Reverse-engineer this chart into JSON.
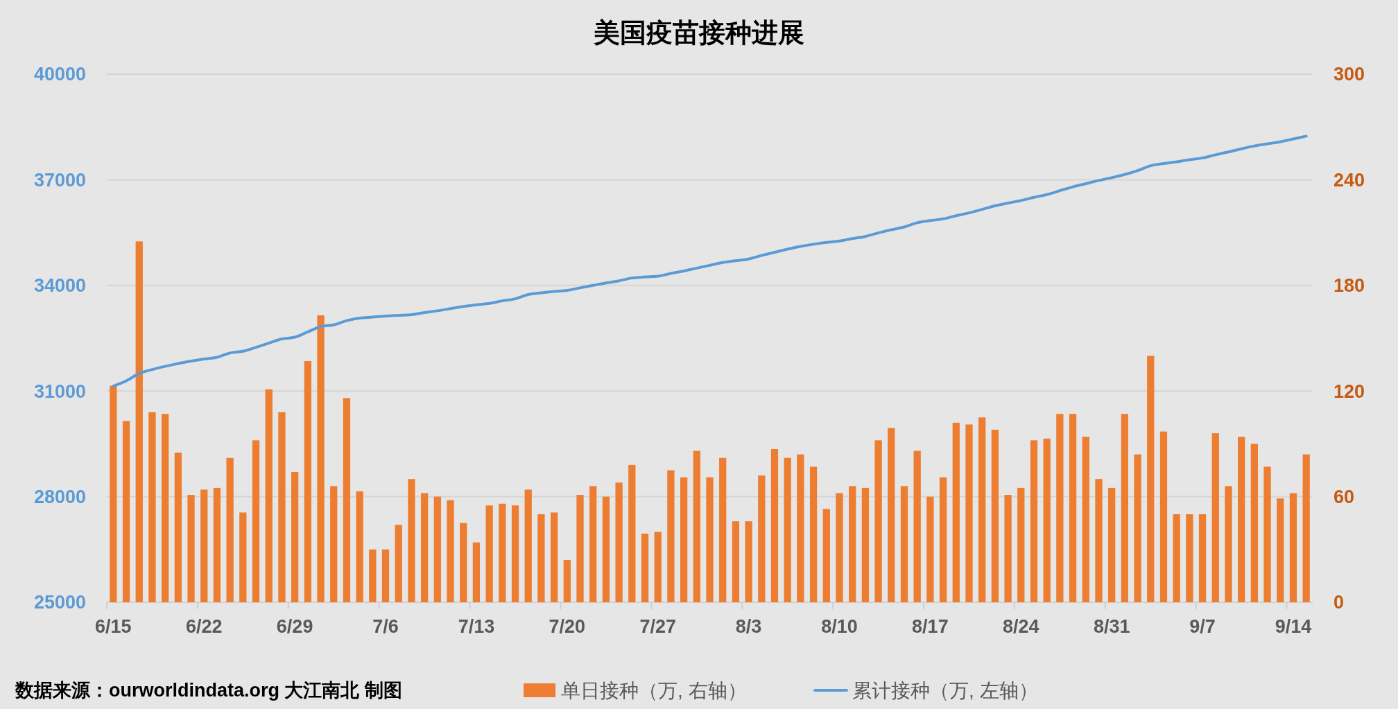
{
  "chart_data": {
    "type": "bar",
    "title": "美国疫苗接种进展",
    "categories": [
      "6/15",
      null,
      null,
      null,
      null,
      null,
      null,
      "6/22",
      null,
      null,
      null,
      null,
      null,
      null,
      "6/29",
      null,
      null,
      null,
      null,
      null,
      null,
      "7/6",
      null,
      null,
      null,
      null,
      null,
      null,
      "7/13",
      null,
      null,
      null,
      null,
      null,
      null,
      "7/20",
      null,
      null,
      null,
      null,
      null,
      null,
      "7/27",
      null,
      null,
      null,
      null,
      null,
      null,
      "8/3",
      null,
      null,
      null,
      null,
      null,
      null,
      "8/10",
      null,
      null,
      null,
      null,
      null,
      null,
      "8/17",
      null,
      null,
      null,
      null,
      null,
      null,
      "8/24",
      null,
      null,
      null,
      null,
      null,
      null,
      "8/31",
      null,
      null,
      null,
      null,
      null,
      null,
      "9/7",
      null,
      null,
      null,
      null,
      null,
      null,
      "9/14",
      null
    ],
    "series": [
      {
        "name": "单日接种（万, 右轴）",
        "axis": "y2",
        "color": "#ed7d31",
        "values": [
          123,
          103,
          205,
          108,
          107,
          85,
          61,
          64,
          65,
          82,
          51,
          92,
          121,
          108,
          74,
          137,
          163,
          66,
          116,
          63,
          30,
          30,
          44,
          70,
          62,
          60,
          58,
          45,
          34,
          55,
          56,
          55,
          64,
          50,
          51,
          24,
          61,
          66,
          60,
          68,
          78,
          39,
          40,
          75,
          71,
          86,
          71,
          82,
          46,
          46,
          72,
          87,
          82,
          84,
          77,
          53,
          62,
          66,
          65,
          92,
          99,
          66,
          86,
          60,
          71,
          102,
          101,
          105,
          98,
          61,
          65,
          92,
          93,
          107,
          107,
          94,
          70,
          65,
          107,
          84,
          140,
          97,
          50,
          50,
          50,
          96,
          66,
          94,
          90,
          77,
          59,
          62,
          84
        ]
      },
      {
        "name": "累计接种（万, 左轴）",
        "type": "line",
        "axis": "y",
        "color": "#5b9bd5",
        "values": [
          31140,
          31290,
          31500,
          31610,
          31700,
          31780,
          31850,
          31910,
          31960,
          32080,
          32130,
          32240,
          32360,
          32480,
          32530,
          32680,
          32830,
          32880,
          33000,
          33070,
          33100,
          33130,
          33150,
          33170,
          33230,
          33280,
          33340,
          33400,
          33450,
          33490,
          33560,
          33620,
          33740,
          33790,
          33830,
          33860,
          33930,
          34000,
          34070,
          34130,
          34210,
          34240,
          34260,
          34340,
          34410,
          34490,
          34570,
          34650,
          34700,
          34750,
          34850,
          34940,
          35030,
          35110,
          35170,
          35220,
          35260,
          35330,
          35390,
          35490,
          35580,
          35660,
          35780,
          35840,
          35890,
          35980,
          36060,
          36160,
          36260,
          36340,
          36410,
          36500,
          36580,
          36690,
          36800,
          36890,
          36980,
          37060,
          37150,
          37260,
          37400,
          37460,
          37510,
          37570,
          37620,
          37710,
          37790,
          37880,
          37960,
          38020,
          38080,
          38160,
          38240
        ]
      }
    ],
    "ylim": [
      25000,
      40000
    ],
    "yticks": [
      25000,
      28000,
      31000,
      34000,
      37000,
      40000
    ],
    "y2lim": [
      0,
      300
    ],
    "y2ticks": [
      0,
      60,
      120,
      180,
      240,
      300
    ],
    "grid": "y",
    "legend": "bottom",
    "marker": "none",
    "line_style": "solid",
    "annotations": [
      "数据来源：ourworldindata.org 大江南北 制图"
    ]
  }
}
